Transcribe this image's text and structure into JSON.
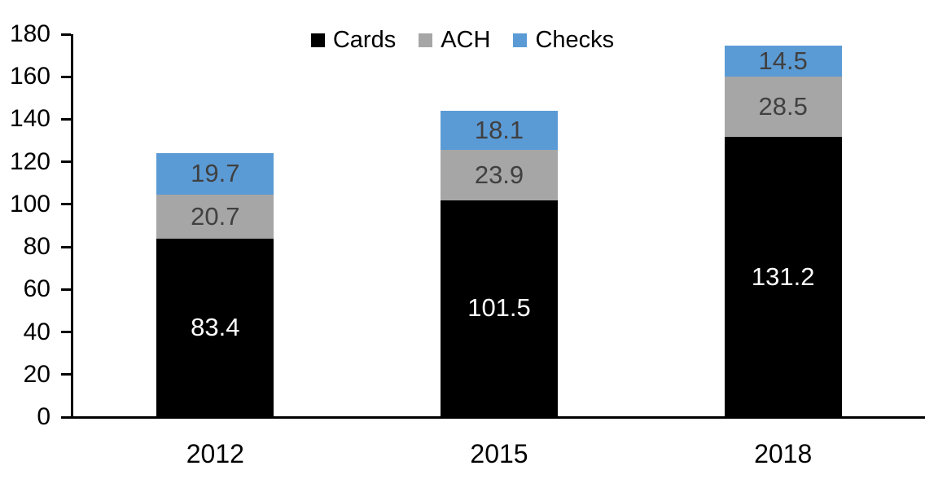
{
  "chart_data": {
    "type": "bar",
    "stacked": true,
    "title": "",
    "xlabel": "",
    "ylabel": "",
    "categories": [
      "2012",
      "2015",
      "2018"
    ],
    "series": [
      {
        "name": "Cards",
        "values": [
          83.4,
          101.5,
          131.2
        ],
        "color": "#000000",
        "label_color": "#ffffff"
      },
      {
        "name": "ACH",
        "values": [
          20.7,
          23.9,
          28.5
        ],
        "color": "#a6a6a6",
        "label_color": "#404040"
      },
      {
        "name": "Checks",
        "values": [
          19.7,
          18.1,
          14.5
        ],
        "color": "#5b9bd5",
        "label_color": "#404040"
      }
    ],
    "totals": [
      123.8,
      143.5,
      174.2
    ],
    "ylim": [
      0,
      180
    ],
    "ytick_step": 20,
    "ytick_labels": [
      "0",
      "20",
      "40",
      "60",
      "80",
      "100",
      "120",
      "140",
      "160",
      "180"
    ],
    "grid": false,
    "legend_position": "top-center",
    "axis_color": "#000000",
    "background_color": "#ffffff"
  }
}
